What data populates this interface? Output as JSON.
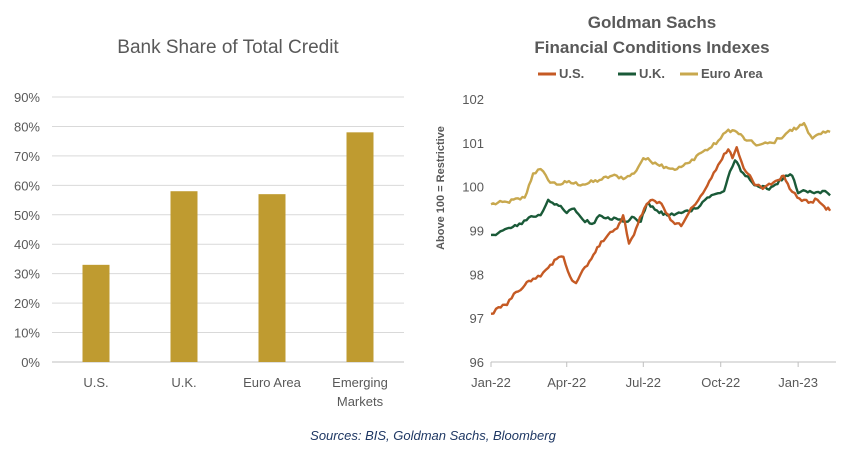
{
  "colors": {
    "bar": "#bf9b30",
    "us": "#c55a24",
    "uk": "#1a5a38",
    "euro": "#c8a84e",
    "grid": "#d9d9d9",
    "text": "#595959",
    "source": "#1f3864"
  },
  "source": "Sources: BIS, Goldman Sachs, Bloomberg",
  "chart_data": [
    {
      "type": "bar",
      "title": "Bank Share of Total Credit",
      "categories": [
        "U.S.",
        "U.K.",
        "Euro Area",
        "Emerging Markets"
      ],
      "category_lines": [
        [
          "U.S."
        ],
        [
          "U.K."
        ],
        [
          "Euro Area"
        ],
        [
          "Emerging",
          "Markets"
        ]
      ],
      "values": [
        33,
        58,
        57,
        78
      ],
      "value_unit": "%",
      "ylim": [
        0,
        90
      ],
      "yticks": [
        0,
        10,
        20,
        30,
        40,
        50,
        60,
        70,
        80,
        90
      ],
      "ytick_labels": [
        "0%",
        "10%",
        "20%",
        "30%",
        "40%",
        "50%",
        "60%",
        "70%",
        "80%",
        "90%"
      ],
      "grid": true
    },
    {
      "type": "line",
      "title_lines": [
        "Goldman  Sachs",
        "Financial  Conditions  Indexes"
      ],
      "ylabel": "Above 100  = Restrictive",
      "ylim": [
        96,
        102
      ],
      "yticks": [
        96,
        97,
        98,
        99,
        100,
        101,
        102
      ],
      "xlim": [
        "2022-01-01",
        "2023-02-15"
      ],
      "xticks": [
        "2022-01-01",
        "2022-04-01",
        "2022-07-01",
        "2022-10-01",
        "2023-01-01"
      ],
      "xtick_labels": [
        "Jan-22",
        "Apr-22",
        "Jul-22",
        "Oct-22",
        "Jan-23"
      ],
      "legend_position": "top",
      "series": [
        {
          "name": "U.S.",
          "color_key": "us",
          "points": [
            [
              "2022-01-01",
              97.1
            ],
            [
              "2022-01-10",
              97.25
            ],
            [
              "2022-01-20",
              97.3
            ],
            [
              "2022-01-31",
              97.6
            ],
            [
              "2022-02-10",
              97.75
            ],
            [
              "2022-02-20",
              97.9
            ],
            [
              "2022-03-01",
              97.95
            ],
            [
              "2022-03-10",
              98.15
            ],
            [
              "2022-03-20",
              98.35
            ],
            [
              "2022-03-28",
              98.4
            ],
            [
              "2022-04-05",
              97.95
            ],
            [
              "2022-04-12",
              97.8
            ],
            [
              "2022-04-20",
              98.1
            ],
            [
              "2022-04-28",
              98.3
            ],
            [
              "2022-05-05",
              98.5
            ],
            [
              "2022-05-12",
              98.75
            ],
            [
              "2022-05-20",
              98.9
            ],
            [
              "2022-05-31",
              99.05
            ],
            [
              "2022-06-07",
              99.35
            ],
            [
              "2022-06-14",
              98.7
            ],
            [
              "2022-06-20",
              98.9
            ],
            [
              "2022-06-27",
              99.3
            ],
            [
              "2022-07-05",
              99.6
            ],
            [
              "2022-07-12",
              99.7
            ],
            [
              "2022-07-20",
              99.65
            ],
            [
              "2022-07-28",
              99.4
            ],
            [
              "2022-08-05",
              99.2
            ],
            [
              "2022-08-15",
              99.1
            ],
            [
              "2022-08-24",
              99.4
            ],
            [
              "2022-09-01",
              99.6
            ],
            [
              "2022-09-10",
              99.85
            ],
            [
              "2022-09-20",
              100.2
            ],
            [
              "2022-09-28",
              100.5
            ],
            [
              "2022-10-05",
              100.75
            ],
            [
              "2022-10-10",
              100.85
            ],
            [
              "2022-10-15",
              100.65
            ],
            [
              "2022-10-20",
              100.9
            ],
            [
              "2022-10-26",
              100.55
            ],
            [
              "2022-11-02",
              100.3
            ],
            [
              "2022-11-10",
              100.05
            ],
            [
              "2022-11-20",
              99.95
            ],
            [
              "2022-11-30",
              100.05
            ],
            [
              "2022-12-08",
              100.15
            ],
            [
              "2022-12-15",
              100.25
            ],
            [
              "2022-12-22",
              99.95
            ],
            [
              "2022-12-31",
              99.75
            ],
            [
              "2023-01-08",
              99.7
            ],
            [
              "2023-01-16",
              99.65
            ],
            [
              "2023-01-24",
              99.7
            ],
            [
              "2023-02-01",
              99.55
            ],
            [
              "2023-02-08",
              99.45
            ]
          ]
        },
        {
          "name": "U.K.",
          "color_key": "uk",
          "points": [
            [
              "2022-01-01",
              98.9
            ],
            [
              "2022-01-15",
              99.0
            ],
            [
              "2022-02-01",
              99.1
            ],
            [
              "2022-02-15",
              99.3
            ],
            [
              "2022-03-01",
              99.35
            ],
            [
              "2022-03-10",
              99.7
            ],
            [
              "2022-03-20",
              99.6
            ],
            [
              "2022-04-01",
              99.4
            ],
            [
              "2022-04-10",
              99.5
            ],
            [
              "2022-04-20",
              99.25
            ],
            [
              "2022-05-01",
              99.15
            ],
            [
              "2022-05-10",
              99.35
            ],
            [
              "2022-05-20",
              99.3
            ],
            [
              "2022-06-01",
              99.25
            ],
            [
              "2022-06-10",
              99.2
            ],
            [
              "2022-06-20",
              99.3
            ],
            [
              "2022-06-28",
              99.2
            ],
            [
              "2022-07-05",
              99.6
            ],
            [
              "2022-07-12",
              99.55
            ],
            [
              "2022-07-20",
              99.4
            ],
            [
              "2022-08-01",
              99.35
            ],
            [
              "2022-08-15",
              99.4
            ],
            [
              "2022-09-01",
              99.5
            ],
            [
              "2022-09-15",
              99.75
            ],
            [
              "2022-09-28",
              99.85
            ],
            [
              "2022-10-05",
              99.9
            ],
            [
              "2022-10-12",
              100.35
            ],
            [
              "2022-10-18",
              100.6
            ],
            [
              "2022-10-25",
              100.35
            ],
            [
              "2022-11-05",
              100.15
            ],
            [
              "2022-11-15",
              100.0
            ],
            [
              "2022-11-25",
              99.95
            ],
            [
              "2022-12-05",
              100.05
            ],
            [
              "2022-12-15",
              100.2
            ],
            [
              "2022-12-25",
              100.25
            ],
            [
              "2023-01-01",
              99.85
            ],
            [
              "2023-01-10",
              99.9
            ],
            [
              "2023-01-20",
              99.85
            ],
            [
              "2023-01-30",
              99.9
            ],
            [
              "2023-02-08",
              99.8
            ]
          ]
        },
        {
          "name": "Euro Area",
          "color_key": "euro",
          "points": [
            [
              "2022-01-01",
              99.6
            ],
            [
              "2022-01-20",
              99.65
            ],
            [
              "2022-02-10",
              99.75
            ],
            [
              "2022-02-20",
              100.3
            ],
            [
              "2022-03-01",
              100.4
            ],
            [
              "2022-03-10",
              100.15
            ],
            [
              "2022-03-20",
              100.05
            ],
            [
              "2022-04-01",
              100.1
            ],
            [
              "2022-04-20",
              100.05
            ],
            [
              "2022-05-10",
              100.15
            ],
            [
              "2022-05-25",
              100.25
            ],
            [
              "2022-06-10",
              100.2
            ],
            [
              "2022-06-20",
              100.3
            ],
            [
              "2022-07-01",
              100.65
            ],
            [
              "2022-07-15",
              100.55
            ],
            [
              "2022-07-28",
              100.45
            ],
            [
              "2022-08-10",
              100.4
            ],
            [
              "2022-08-25",
              100.55
            ],
            [
              "2022-09-05",
              100.75
            ],
            [
              "2022-09-20",
              100.9
            ],
            [
              "2022-10-01",
              101.1
            ],
            [
              "2022-10-10",
              101.3
            ],
            [
              "2022-10-20",
              101.25
            ],
            [
              "2022-11-01",
              101.05
            ],
            [
              "2022-11-15",
              100.95
            ],
            [
              "2022-12-01",
              101.0
            ],
            [
              "2022-12-10",
              101.1
            ],
            [
              "2022-12-20",
              101.25
            ],
            [
              "2023-01-01",
              101.35
            ],
            [
              "2023-01-08",
              101.45
            ],
            [
              "2023-01-18",
              101.1
            ],
            [
              "2023-01-28",
              101.2
            ],
            [
              "2023-02-08",
              101.25
            ]
          ]
        }
      ]
    }
  ]
}
